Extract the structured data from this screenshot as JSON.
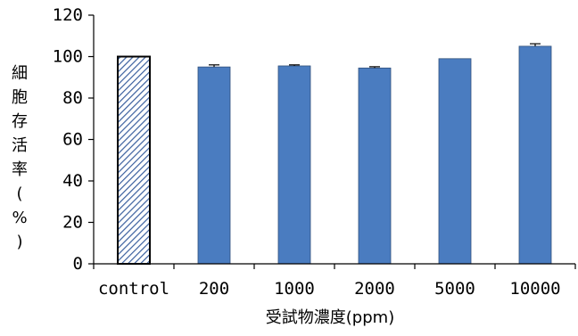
{
  "chart_data": {
    "type": "bar",
    "categories": [
      "control",
      "200",
      "1000",
      "2000",
      "5000",
      "10000"
    ],
    "values": [
      100,
      95,
      95.5,
      94.5,
      99,
      105
    ],
    "errors": [
      0,
      1,
      0.5,
      0.6,
      0,
      1.2
    ],
    "xlabel": "受試物濃度(ppm)",
    "ylabel": "細胞存活率(%)",
    "ylabel_chars": [
      "細",
      "胞",
      "存",
      "活",
      "率",
      "(",
      "%",
      ")"
    ],
    "ylim": [
      0,
      120
    ],
    "yticks": [
      0,
      20,
      40,
      60,
      80,
      100,
      120
    ],
    "bar_color": "#4a7cc0",
    "control_pattern": "diagonal-hatch",
    "control_color": "#3a5f9e",
    "grid": false
  }
}
